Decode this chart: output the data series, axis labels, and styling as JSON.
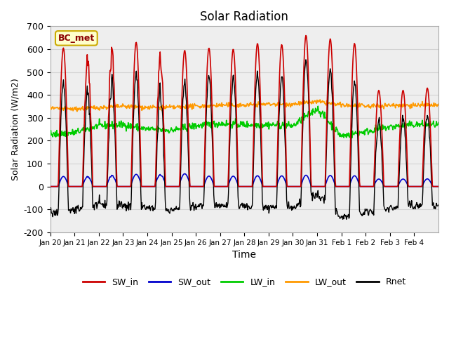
{
  "title": "Solar Radiation",
  "ylabel": "Solar Radiation (W/m2)",
  "xlabel": "Time",
  "annotation_label": "BC_met",
  "ylim": [
    -200,
    700
  ],
  "yticks": [
    -200,
    -100,
    0,
    100,
    200,
    300,
    400,
    500,
    600,
    700
  ],
  "colors": {
    "SW_in": "#cc0000",
    "SW_out": "#0000cc",
    "LW_in": "#00cc00",
    "LW_out": "#ff9900",
    "Rnet": "#000000"
  },
  "legend_items": [
    "SW_in",
    "SW_out",
    "LW_in",
    "LW_out",
    "Rnet"
  ],
  "x_tick_labels": [
    "Jan 20",
    "Jan 21",
    "Jan 22",
    "Jan 23",
    "Jan 24",
    "Jan 25",
    "Jan 26",
    "Jan 27",
    "Jan 28",
    "Jan 29",
    "Jan 30",
    "Jan 31",
    "Feb 1",
    "Feb 2",
    "Feb 3",
    "Feb 4"
  ],
  "n_days": 16,
  "dt_hours": 0.5
}
